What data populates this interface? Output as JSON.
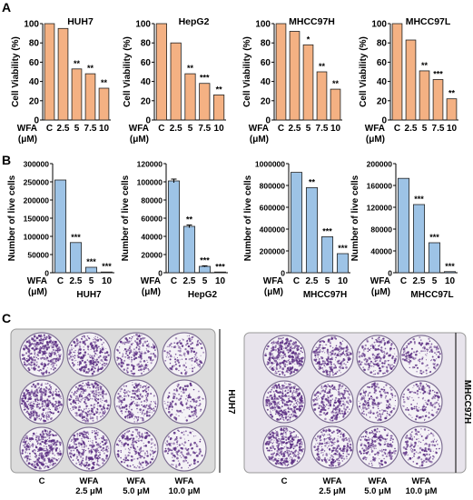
{
  "panels": {
    "a": "A",
    "b": "B",
    "c": "C"
  },
  "wfa_label": "WFA",
  "unit_label": "(μM)",
  "chart_data": [
    {
      "type": "bar",
      "panel": "A",
      "title": "HUH7",
      "ylabel": "Cell Viability (%)",
      "ylim": [
        0,
        100
      ],
      "yticks": [
        "0",
        "20",
        "40",
        "60",
        "80",
        "100"
      ],
      "categories": [
        "C",
        "2.5",
        "5",
        "7.5",
        "10"
      ],
      "values": [
        100,
        95,
        53,
        48,
        33
      ],
      "errors": [
        0,
        0,
        0,
        0,
        0
      ],
      "significance": [
        "",
        "",
        "**",
        "**",
        "**"
      ],
      "color": "#f4b183"
    },
    {
      "type": "bar",
      "panel": "A",
      "title": "HepG2",
      "ylabel": "Cell Viability (%)",
      "ylim": [
        0,
        100
      ],
      "yticks": [
        "0",
        "20",
        "40",
        "60",
        "80",
        "100"
      ],
      "categories": [
        "C",
        "2.5",
        "5",
        "7.5",
        "10"
      ],
      "values": [
        100,
        80,
        48,
        38,
        26
      ],
      "errors": [
        0,
        0,
        0,
        0,
        0
      ],
      "significance": [
        "",
        "",
        "**",
        "***",
        "**"
      ],
      "color": "#f4b183"
    },
    {
      "type": "bar",
      "panel": "A",
      "title": "MHCC97H",
      "ylabel": "Cell Viability (%)",
      "ylim": [
        0,
        100
      ],
      "yticks": [
        "0",
        "20",
        "40",
        "60",
        "80",
        "100"
      ],
      "categories": [
        "C",
        "2.5",
        "5",
        "7.5",
        "10"
      ],
      "values": [
        100,
        92,
        78,
        50,
        32
      ],
      "errors": [
        0,
        0,
        0,
        0,
        0
      ],
      "significance": [
        "",
        "",
        "*",
        "**",
        "**"
      ],
      "color": "#f4b183"
    },
    {
      "type": "bar",
      "panel": "A",
      "title": "MHCC97L",
      "ylabel": "Cell Viability (%)",
      "ylim": [
        0,
        100
      ],
      "yticks": [
        "0",
        "20",
        "40",
        "60",
        "80",
        "100"
      ],
      "categories": [
        "C",
        "2.5",
        "5",
        "7.5",
        "10"
      ],
      "values": [
        100,
        83,
        51,
        42,
        22
      ],
      "errors": [
        0,
        0,
        0,
        0,
        0
      ],
      "significance": [
        "",
        "",
        "**",
        "***",
        "**"
      ],
      "color": "#f4b183"
    },
    {
      "type": "bar",
      "panel": "B",
      "xlabel": "HUH7",
      "ylabel": "Number of live cells",
      "ylim": [
        0,
        300000
      ],
      "yticks": [
        "0",
        "50000",
        "100000",
        "150000",
        "200000",
        "250000",
        "300000"
      ],
      "categories": [
        "C",
        "2.5",
        "5",
        "10"
      ],
      "values": [
        255000,
        83000,
        15000,
        2000
      ],
      "errors": [
        0,
        0,
        0,
        0
      ],
      "significance": [
        "",
        "***",
        "***",
        "***"
      ],
      "color": "#9dc3e6"
    },
    {
      "type": "bar",
      "panel": "B",
      "xlabel": "HepG2",
      "ylabel": "Number of live cells",
      "ylim": [
        0,
        120000
      ],
      "yticks": [
        "0",
        "20000",
        "40000",
        "60000",
        "80000",
        "100000",
        "120000"
      ],
      "categories": [
        "C",
        "2.5",
        "5",
        "10"
      ],
      "values": [
        101000,
        51000,
        7000,
        500
      ],
      "errors": [
        2000,
        1500,
        600,
        0
      ],
      "significance": [
        "",
        "**",
        "***",
        "***"
      ],
      "color": "#9dc3e6"
    },
    {
      "type": "bar",
      "panel": "B",
      "xlabel": "MHCC97H",
      "ylabel": "Number of live cells",
      "ylim": [
        0,
        1000000
      ],
      "yticks": [
        "0",
        "200000",
        "400000",
        "600000",
        "800000",
        "1000000"
      ],
      "categories": [
        "C",
        "2.5",
        "5",
        "10"
      ],
      "values": [
        920000,
        780000,
        330000,
        175000
      ],
      "errors": [
        0,
        0,
        0,
        0
      ],
      "significance": [
        "",
        "**",
        "***",
        "***"
      ],
      "color": "#9dc3e6"
    },
    {
      "type": "bar",
      "panel": "B",
      "xlabel": "MHCC97L",
      "ylabel": "Number of live cells",
      "ylim": [
        0,
        200000
      ],
      "yticks": [
        "0",
        "40000",
        "80000",
        "120000",
        "160000",
        "200000"
      ],
      "categories": [
        "C",
        "2.5",
        "5",
        "10"
      ],
      "values": [
        173000,
        125000,
        55000,
        2000
      ],
      "errors": [
        0,
        0,
        0,
        0
      ],
      "significance": [
        "",
        "***",
        "***",
        "***"
      ],
      "color": "#9dc3e6"
    }
  ],
  "colonies": {
    "conditions": [
      "C",
      "WFA\n2.5 μM",
      "WFA\n5.0 μM",
      "WFA\n10.0 μM"
    ],
    "plates": [
      {
        "label": "HUH7",
        "density": [
          1.0,
          0.8,
          0.65,
          0.45
        ],
        "plate_color": "#dcdcdc"
      },
      {
        "label": "MHCC97H",
        "density": [
          1.0,
          0.75,
          0.6,
          0.45
        ],
        "plate_color": "#e8e4ec"
      }
    ],
    "stain_color": "#5a2d82"
  }
}
